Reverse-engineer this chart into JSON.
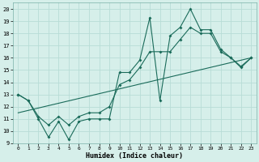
{
  "xlabel": "Humidex (Indice chaleur)",
  "xlim": [
    -0.5,
    23.5
  ],
  "ylim": [
    9,
    20.5
  ],
  "xticks": [
    0,
    1,
    2,
    3,
    4,
    5,
    6,
    7,
    8,
    9,
    10,
    11,
    12,
    13,
    14,
    15,
    16,
    17,
    18,
    19,
    20,
    21,
    22,
    23
  ],
  "yticks": [
    9,
    10,
    11,
    12,
    13,
    14,
    15,
    16,
    17,
    18,
    19,
    20
  ],
  "bg_color": "#d6efea",
  "grid_color": "#b8ddd6",
  "line_color": "#1a6b5a",
  "series1_x": [
    0,
    1,
    2,
    3,
    4,
    5,
    6,
    7,
    8,
    9,
    10,
    11,
    12,
    13,
    14,
    15,
    16,
    17,
    18,
    19,
    20,
    21,
    22,
    23
  ],
  "series1_y": [
    13,
    12.5,
    11,
    9.5,
    10.8,
    9.3,
    10.8,
    11,
    11,
    11,
    14.8,
    14.8,
    15.8,
    19.3,
    12.5,
    17.8,
    18.5,
    20,
    18.3,
    18.3,
    16.7,
    16,
    15.3,
    16
  ],
  "series2_x": [
    0,
    1,
    2,
    3,
    4,
    5,
    6,
    7,
    8,
    9,
    10,
    11,
    12,
    13,
    14,
    15,
    16,
    17,
    18,
    19,
    20,
    21,
    22,
    23
  ],
  "series2_y": [
    13,
    12.5,
    11.2,
    10.5,
    11.2,
    10.5,
    11.2,
    11.5,
    11.5,
    12.0,
    13.8,
    14.2,
    15.2,
    16.5,
    16.5,
    16.5,
    17.5,
    18.5,
    18.0,
    18.0,
    16.5,
    16.0,
    15.2,
    16.0
  ],
  "series3_x": [
    0,
    23
  ],
  "series3_y": [
    11.5,
    16.0
  ]
}
